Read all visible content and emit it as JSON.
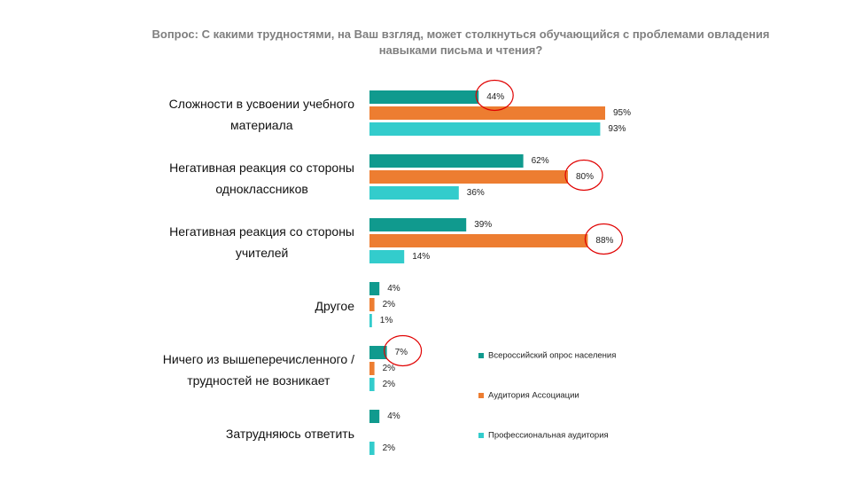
{
  "chart_data": {
    "type": "hbar",
    "title": "Вопрос: С какими трудностями, на Ваш взгляд, может столкнуться обучающийся с проблемами овладения\nнавыками письма и чтения?",
    "categories": [
      "Сложности в усвоении учебного\nматериала",
      "Негативная реакция со стороны\nодноклассников",
      "Негативная реакция со стороны\nучителей",
      "Другое",
      "Ничего из вышеперечисленного /\nтрудностей не возникает",
      "Затрудняюсь ответить"
    ],
    "series": [
      {
        "name": "Всероссийский опрос населения",
        "color": "#109a8e",
        "values": [
          44,
          62,
          39,
          4,
          7,
          4
        ],
        "value_labels": [
          "44%",
          "62%",
          "39%",
          "4%",
          "7%",
          "4%"
        ]
      },
      {
        "name": "Аудитория Ассоциации",
        "color": "#ed7d31",
        "values": [
          95,
          80,
          88,
          2,
          2,
          null
        ],
        "value_labels": [
          "95%",
          "80%",
          "88%",
          "2%",
          "2%",
          null
        ]
      },
      {
        "name": "Профессиональная аудитория",
        "color": "#33cccc",
        "values": [
          93,
          36,
          14,
          1,
          2,
          2
        ],
        "value_labels": [
          "93%",
          "36%",
          "14%",
          "1%",
          "2%",
          "2%"
        ]
      }
    ],
    "highlights": [
      [
        0,
        0
      ],
      [
        1,
        1
      ],
      [
        1,
        2
      ],
      [
        0,
        4
      ]
    ],
    "highlight_color": "#e00000",
    "legend": "right"
  }
}
